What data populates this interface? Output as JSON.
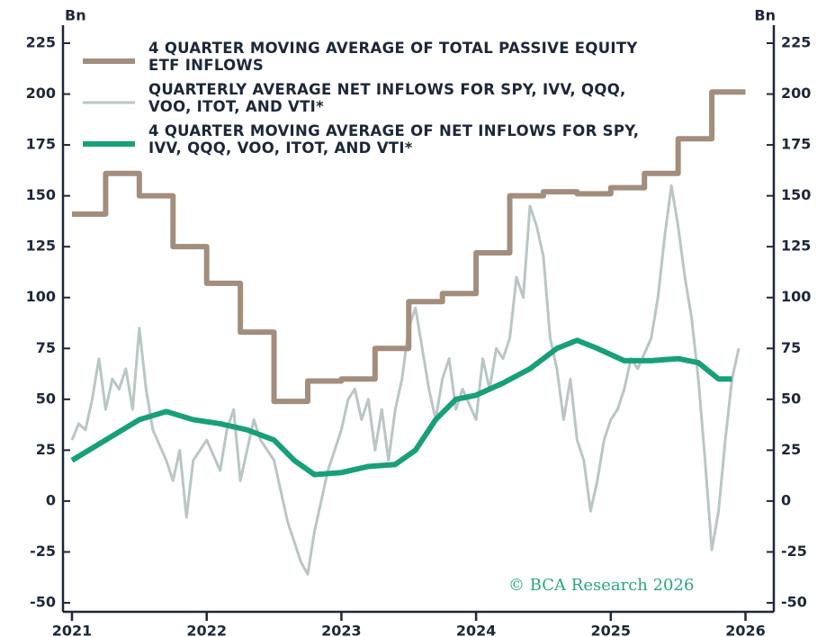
{
  "chart_data": {
    "type": "line",
    "y_label_left": "Bn",
    "y_label_right": "Bn",
    "annotation": "© BCA Research 2026",
    "xlim": [
      2021,
      2026.05
    ],
    "xticks": [
      2021,
      2022,
      2023,
      2024,
      2025,
      2026
    ],
    "ylim": [
      -50,
      225
    ],
    "yticks": [
      -50,
      -25,
      0,
      25,
      50,
      75,
      100,
      125,
      150,
      175,
      200,
      225
    ],
    "y2lim": [
      -50,
      225
    ],
    "y2ticks": [
      -50,
      -25,
      0,
      25,
      50,
      75,
      100,
      125,
      150,
      175,
      200,
      225
    ],
    "series": [
      {
        "name": "4 QUARTER MOVING AVERAGE OF TOTAL PASSIVE EQUITY ETF INFLOWS",
        "color": "#a38d7c",
        "step": true,
        "x": [
          2021.0,
          2021.25,
          2021.5,
          2021.75,
          2022.0,
          2022.25,
          2022.5,
          2022.75,
          2023.0,
          2023.25,
          2023.5,
          2023.75,
          2024.0,
          2024.25,
          2024.5,
          2024.75,
          2025.0,
          2025.25,
          2025.5,
          2025.75,
          2026.0
        ],
        "values": [
          141,
          161,
          150,
          125,
          107,
          83,
          49,
          59,
          60,
          75,
          98,
          102,
          122,
          150,
          152,
          151,
          154,
          161,
          178,
          201,
          201
        ]
      },
      {
        "name": "QUARTERLY AVERAGE NET INFLOWS FOR SPY, IVV, QQQ, VOO, ITOT, AND VTI*",
        "color": "#b9c6c5",
        "x": [
          2021.0,
          2021.05,
          2021.1,
          2021.15,
          2021.2,
          2021.25,
          2021.3,
          2021.35,
          2021.4,
          2021.45,
          2021.5,
          2021.55,
          2021.6,
          2021.7,
          2021.75,
          2021.8,
          2021.85,
          2021.9,
          2022.0,
          2022.1,
          2022.15,
          2022.2,
          2022.25,
          2022.3,
          2022.35,
          2022.4,
          2022.5,
          2022.55,
          2022.6,
          2022.65,
          2022.7,
          2022.75,
          2022.8,
          2022.85,
          2022.9,
          2023.0,
          2023.05,
          2023.1,
          2023.15,
          2023.2,
          2023.25,
          2023.3,
          2023.35,
          2023.4,
          2023.45,
          2023.5,
          2023.55,
          2023.6,
          2023.65,
          2023.7,
          2023.75,
          2023.8,
          2023.85,
          2023.9,
          2024.0,
          2024.05,
          2024.1,
          2024.15,
          2024.2,
          2024.25,
          2024.3,
          2024.35,
          2024.4,
          2024.45,
          2024.5,
          2024.55,
          2024.6,
          2024.65,
          2024.7,
          2024.75,
          2024.8,
          2024.85,
          2024.9,
          2024.95,
          2025.0,
          2025.05,
          2025.1,
          2025.15,
          2025.2,
          2025.3,
          2025.35,
          2025.4,
          2025.45,
          2025.5,
          2025.55,
          2025.6,
          2025.65,
          2025.7,
          2025.75,
          2025.8,
          2025.85,
          2025.9,
          2025.95
        ],
        "values": [
          30,
          38,
          35,
          50,
          70,
          45,
          60,
          55,
          65,
          45,
          85,
          55,
          35,
          20,
          10,
          25,
          -8,
          20,
          30,
          15,
          35,
          45,
          10,
          25,
          40,
          30,
          20,
          5,
          -10,
          -20,
          -30,
          -36,
          -15,
          0,
          15,
          35,
          50,
          55,
          40,
          50,
          25,
          45,
          20,
          45,
          60,
          85,
          95,
          75,
          55,
          40,
          60,
          70,
          45,
          55,
          40,
          70,
          55,
          75,
          70,
          80,
          110,
          100,
          145,
          135,
          120,
          80,
          65,
          40,
          60,
          30,
          20,
          -5,
          10,
          30,
          40,
          45,
          55,
          70,
          65,
          80,
          100,
          130,
          155,
          135,
          110,
          90,
          60,
          20,
          -24,
          -5,
          30,
          60,
          75
        ]
      },
      {
        "name": "4 QUARTER MOVING AVERAGE OF NET INFLOWS FOR SPY, IVV, QQQ, VOO, ITOT, AND VTI*",
        "color": "#17a07a",
        "x": [
          2021.0,
          2021.25,
          2021.5,
          2021.7,
          2021.9,
          2022.1,
          2022.3,
          2022.5,
          2022.65,
          2022.8,
          2023.0,
          2023.2,
          2023.4,
          2023.55,
          2023.7,
          2023.85,
          2024.0,
          2024.2,
          2024.4,
          2024.6,
          2024.75,
          2024.9,
          2025.1,
          2025.3,
          2025.5,
          2025.65,
          2025.8,
          2025.9
        ],
        "values": [
          20,
          30,
          40,
          44,
          40,
          38,
          35,
          30,
          20,
          13,
          14,
          17,
          18,
          25,
          40,
          50,
          52,
          58,
          65,
          75,
          79,
          75,
          69,
          69,
          70,
          68,
          60,
          60
        ]
      }
    ]
  }
}
